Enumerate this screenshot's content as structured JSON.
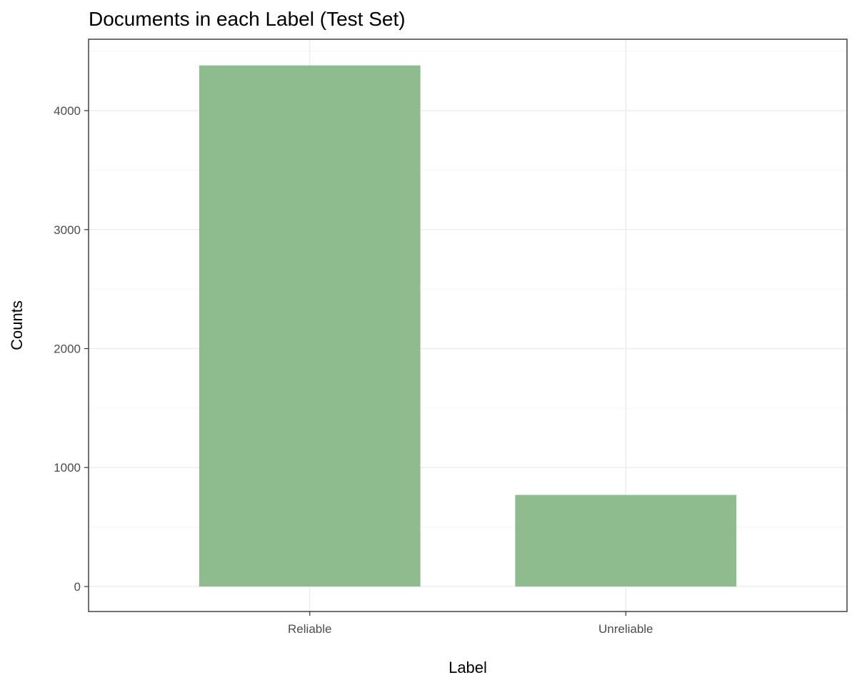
{
  "chart_data": {
    "type": "bar",
    "title": "Documents in each Label (Test Set)",
    "xlabel": "Label",
    "ylabel": "Counts",
    "categories": [
      "Reliable",
      "Unreliable"
    ],
    "values": [
      4380,
      770
    ],
    "yticks": [
      0,
      1000,
      2000,
      3000,
      4000
    ],
    "ylim": [
      -210,
      4600
    ],
    "grid": true,
    "bar_color": "#8fbc8f"
  }
}
